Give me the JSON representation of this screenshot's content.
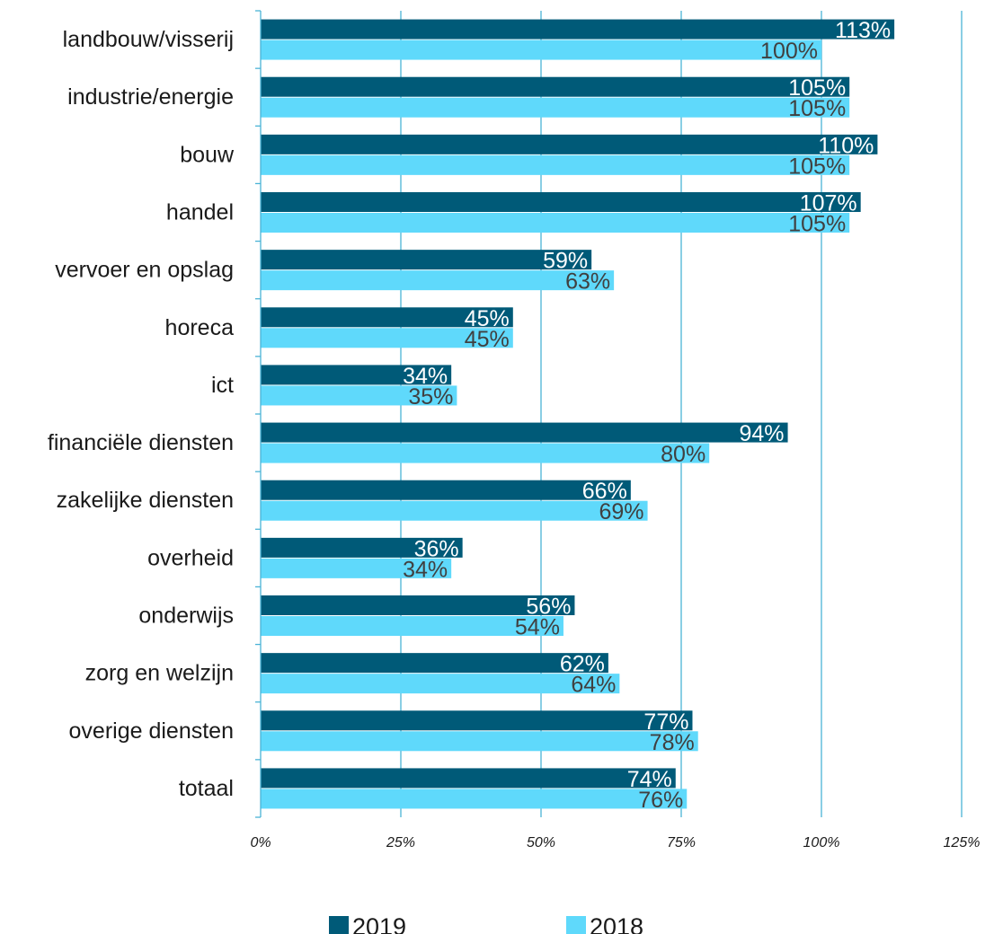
{
  "chart_data": {
    "type": "bar",
    "orientation": "horizontal",
    "categories": [
      "landbouw/visserij",
      "industrie/energie",
      "bouw",
      "handel",
      "vervoer en opslag",
      "horeca",
      "ict",
      "financiële diensten",
      "zakelijke diensten",
      "overheid",
      "onderwijs",
      "zorg en welzijn",
      "overige diensten",
      "totaal"
    ],
    "series": [
      {
        "name": "2019",
        "color": "#005a78",
        "label_color": "#ffffff",
        "values": [
          113,
          105,
          110,
          107,
          59,
          45,
          34,
          94,
          66,
          36,
          56,
          62,
          77,
          74
        ],
        "labels": [
          "113%",
          "105%",
          "110%",
          "107%",
          "59%",
          "45%",
          "34%",
          "94%",
          "66%",
          "36%",
          "56%",
          "62%",
          "77%",
          "74%"
        ]
      },
      {
        "name": "2018",
        "color": "#5fd9fb",
        "label_color": "#404040",
        "values": [
          100,
          105,
          105,
          105,
          63,
          45,
          35,
          80,
          69,
          34,
          54,
          64,
          78,
          76
        ],
        "labels": [
          "100%",
          "105%",
          "105%",
          "105%",
          "63%",
          "45%",
          "35%",
          "80%",
          "69%",
          "34%",
          "54%",
          "64%",
          "78%",
          "76%"
        ]
      }
    ],
    "xlim": [
      0,
      125
    ],
    "xticks": [
      0,
      25,
      50,
      75,
      100,
      125
    ],
    "xtick_labels": [
      "0%",
      "25%",
      "50%",
      "75%",
      "100%",
      "125%"
    ],
    "grid": true,
    "gridline_color": "#4ab3d6",
    "legend_position": "bottom",
    "title": "",
    "xlabel": "",
    "ylabel": ""
  }
}
